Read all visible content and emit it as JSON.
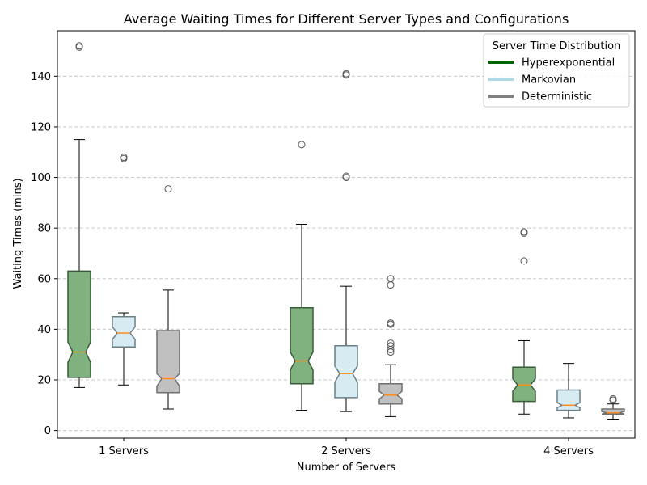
{
  "chart_data": {
    "type": "box",
    "title": "Average Waiting Times for Different Server Types and Configurations",
    "xlabel": "Number of Servers",
    "ylabel": "Waiting Times (mins)",
    "categories": [
      "1 Servers",
      "2 Servers",
      "4 Servers"
    ],
    "ylim": [
      -3,
      158
    ],
    "yticks": [
      0,
      20,
      40,
      60,
      80,
      100,
      120,
      140
    ],
    "grid": "y-dashed",
    "notched": true,
    "legend": {
      "title": "Server Time Distribution",
      "placement": "top-right",
      "entries": [
        {
          "name": "Hyperexponential",
          "color": "#006400"
        },
        {
          "name": "Markovian",
          "color": "#add8e6"
        },
        {
          "name": "Deterministic",
          "color": "#808080"
        }
      ]
    },
    "series": [
      {
        "name": "Hyperexponential",
        "face": "#7fb27f",
        "edge": "#3a5a3a",
        "boxes": [
          {
            "category": "1 Servers",
            "whisker_low": 17,
            "q1": 21,
            "median": 31,
            "q3": 63,
            "whisker_high": 115,
            "notch_low": 27,
            "notch_high": 35,
            "outliers": [
              151.5,
              152
            ]
          },
          {
            "category": "2 Servers",
            "whisker_low": 8,
            "q1": 18.5,
            "median": 27.5,
            "q3": 48.5,
            "whisker_high": 81.5,
            "notch_low": 24,
            "notch_high": 31,
            "outliers": [
              113
            ]
          },
          {
            "category": "4 Servers",
            "whisker_low": 6.5,
            "q1": 11.5,
            "median": 18,
            "q3": 25,
            "whisker_high": 35.5,
            "notch_low": 15.5,
            "notch_high": 20.5,
            "outliers": [
              67,
              78,
              78.5
            ]
          }
        ]
      },
      {
        "name": "Markovian",
        "face": "#d6ebf2",
        "edge": "#6a7f88",
        "boxes": [
          {
            "category": "1 Servers",
            "whisker_low": 18,
            "q1": 33,
            "median": 38.5,
            "q3": 45,
            "whisker_high": 46.5,
            "notch_low": 36,
            "notch_high": 41,
            "outliers": [
              107.5,
              108
            ]
          },
          {
            "category": "2 Servers",
            "whisker_low": 7.5,
            "q1": 13,
            "median": 22.5,
            "q3": 33.5,
            "whisker_high": 57,
            "notch_low": 19,
            "notch_high": 25.5,
            "outliers": [
              100,
              100.5,
              140.5,
              141
            ]
          },
          {
            "category": "4 Servers",
            "whisker_low": 5,
            "q1": 8,
            "median": 10,
            "q3": 16,
            "whisker_high": 26.5,
            "notch_low": 9,
            "notch_high": 11,
            "outliers": []
          }
        ]
      },
      {
        "name": "Deterministic",
        "face": "#c0c0c0",
        "edge": "#707070",
        "boxes": [
          {
            "category": "1 Servers",
            "whisker_low": 8.5,
            "q1": 15,
            "median": 20.5,
            "q3": 39.5,
            "whisker_high": 55.5,
            "notch_low": 17.5,
            "notch_high": 22.5,
            "outliers": [
              95.5
            ]
          },
          {
            "category": "2 Servers",
            "whisker_low": 5.5,
            "q1": 10.5,
            "median": 14,
            "q3": 18.5,
            "whisker_high": 26,
            "notch_low": 12.5,
            "notch_high": 15.5,
            "outliers": [
              31,
              32,
              33.5,
              34.5,
              42,
              42.5,
              57.5,
              60
            ]
          },
          {
            "category": "4 Servers",
            "whisker_low": 4.5,
            "q1": 6.5,
            "median": 7,
            "q3": 8.5,
            "whisker_high": 10.5,
            "notch_low": 6.5,
            "notch_high": 7.5,
            "outliers": [
              12,
              12.5
            ]
          }
        ]
      }
    ]
  }
}
